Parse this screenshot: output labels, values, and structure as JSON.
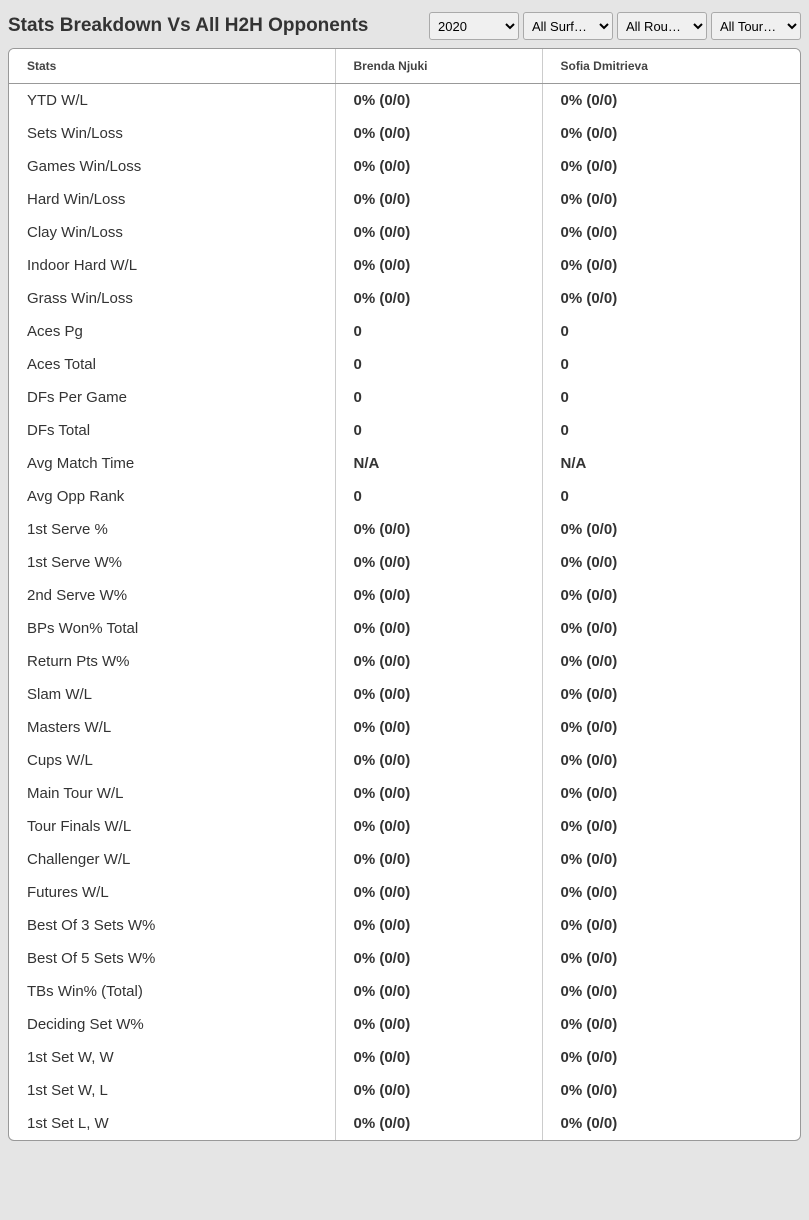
{
  "header": {
    "title": "Stats Breakdown Vs All H2H Opponents"
  },
  "filters": {
    "year": {
      "selected": "2020",
      "options": [
        "2020"
      ]
    },
    "surface": {
      "selected": "All Surf…",
      "options": [
        "All Surf…"
      ]
    },
    "round": {
      "selected": "All Rou…",
      "options": [
        "All Rou…"
      ]
    },
    "tour": {
      "selected": "All Tour…",
      "options": [
        "All Tour…"
      ]
    }
  },
  "table": {
    "columns": [
      "Stats",
      "Brenda Njuki",
      "Sofia Dmitrieva"
    ],
    "rows": [
      {
        "stat": "YTD W/L",
        "p1": "0% (0/0)",
        "p2": "0% (0/0)"
      },
      {
        "stat": "Sets Win/Loss",
        "p1": "0% (0/0)",
        "p2": "0% (0/0)"
      },
      {
        "stat": "Games Win/Loss",
        "p1": "0% (0/0)",
        "p2": "0% (0/0)"
      },
      {
        "stat": "Hard Win/Loss",
        "p1": "0% (0/0)",
        "p2": "0% (0/0)"
      },
      {
        "stat": "Clay Win/Loss",
        "p1": "0% (0/0)",
        "p2": "0% (0/0)"
      },
      {
        "stat": "Indoor Hard W/L",
        "p1": "0% (0/0)",
        "p2": "0% (0/0)"
      },
      {
        "stat": "Grass Win/Loss",
        "p1": "0% (0/0)",
        "p2": "0% (0/0)"
      },
      {
        "stat": "Aces Pg",
        "p1": "0",
        "p2": "0"
      },
      {
        "stat": "Aces Total",
        "p1": "0",
        "p2": "0"
      },
      {
        "stat": "DFs Per Game",
        "p1": "0",
        "p2": "0"
      },
      {
        "stat": "DFs Total",
        "p1": "0",
        "p2": "0"
      },
      {
        "stat": "Avg Match Time",
        "p1": "N/A",
        "p2": "N/A"
      },
      {
        "stat": "Avg Opp Rank",
        "p1": "0",
        "p2": "0"
      },
      {
        "stat": "1st Serve %",
        "p1": "0% (0/0)",
        "p2": "0% (0/0)"
      },
      {
        "stat": "1st Serve W%",
        "p1": "0% (0/0)",
        "p2": "0% (0/0)"
      },
      {
        "stat": "2nd Serve W%",
        "p1": "0% (0/0)",
        "p2": "0% (0/0)"
      },
      {
        "stat": "BPs Won% Total",
        "p1": "0% (0/0)",
        "p2": "0% (0/0)"
      },
      {
        "stat": "Return Pts W%",
        "p1": "0% (0/0)",
        "p2": "0% (0/0)"
      },
      {
        "stat": "Slam W/L",
        "p1": "0% (0/0)",
        "p2": "0% (0/0)"
      },
      {
        "stat": "Masters W/L",
        "p1": "0% (0/0)",
        "p2": "0% (0/0)"
      },
      {
        "stat": "Cups W/L",
        "p1": "0% (0/0)",
        "p2": "0% (0/0)"
      },
      {
        "stat": "Main Tour W/L",
        "p1": "0% (0/0)",
        "p2": "0% (0/0)"
      },
      {
        "stat": "Tour Finals W/L",
        "p1": "0% (0/0)",
        "p2": "0% (0/0)"
      },
      {
        "stat": "Challenger W/L",
        "p1": "0% (0/0)",
        "p2": "0% (0/0)"
      },
      {
        "stat": "Futures W/L",
        "p1": "0% (0/0)",
        "p2": "0% (0/0)"
      },
      {
        "stat": "Best Of 3 Sets W%",
        "p1": "0% (0/0)",
        "p2": "0% (0/0)"
      },
      {
        "stat": "Best Of 5 Sets W%",
        "p1": "0% (0/0)",
        "p2": "0% (0/0)"
      },
      {
        "stat": "TBs Win% (Total)",
        "p1": "0% (0/0)",
        "p2": "0% (0/0)"
      },
      {
        "stat": "Deciding Set W%",
        "p1": "0% (0/0)",
        "p2": "0% (0/0)"
      },
      {
        "stat": "1st Set W, W",
        "p1": "0% (0/0)",
        "p2": "0% (0/0)"
      },
      {
        "stat": "1st Set W, L",
        "p1": "0% (0/0)",
        "p2": "0% (0/0)"
      },
      {
        "stat": "1st Set L, W",
        "p1": "0% (0/0)",
        "p2": "0% (0/0)"
      }
    ]
  },
  "styling": {
    "background_color": "#e5e5e5",
    "table_background": "#ffffff",
    "border_color": "#999999",
    "cell_border_color": "#cccccc",
    "title_color": "#333333",
    "header_text_color": "#444444",
    "cell_text_color": "#333333",
    "title_fontsize": 19,
    "header_fontsize": 12,
    "cell_fontsize": 15
  }
}
